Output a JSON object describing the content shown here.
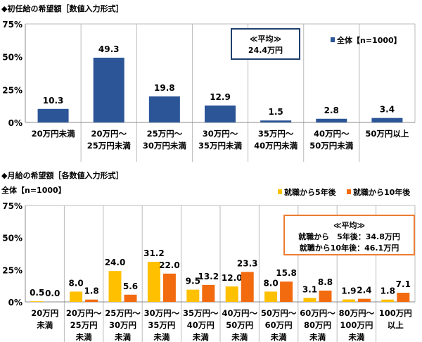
{
  "chart_data": [
    {
      "type": "bar",
      "title": "◆初任給の希望額［数値入力形式］",
      "categories": [
        "20万円未満",
        "20万円～\n25万円未満",
        "25万円～\n30万円未満",
        "30万円～\n35万円未満",
        "35万円～\n40万円未満",
        "40万円～\n50万円未満",
        "50万円以上"
      ],
      "series": [
        {
          "name": "全体【n=1000】",
          "values": [
            10.3,
            49.3,
            19.8,
            12.9,
            1.5,
            2.8,
            3.4
          ],
          "color": "#2B5597"
        }
      ],
      "yticks": [
        "0%",
        "25%",
        "50%",
        "75%"
      ],
      "ylim": [
        0,
        75
      ],
      "legend": "top-right",
      "annotation": {
        "title": "≪平均≫",
        "lines": [
          "24.4万円"
        ],
        "border_color": "#1F3F6E"
      }
    },
    {
      "type": "bar",
      "title": "◆月給の希望額［各数値入力形式］",
      "subtitle": "全体【n=1000】",
      "categories": [
        "20万円\n未満",
        "20万円～\n25万円\n未満",
        "25万円～\n30万円\n未満",
        "30万円～\n35万円\n未満",
        "35万円～\n40万円\n未満",
        "40万円～\n50万円\n未満",
        "50万円～\n60万円\n未満",
        "60万円～\n80万円\n未満",
        "80万円～\n100万円\n未満",
        "100万円\n以上"
      ],
      "series": [
        {
          "name": "就職から5年後",
          "values": [
            0.5,
            8.0,
            24.0,
            31.2,
            9.5,
            12.0,
            8.0,
            3.1,
            1.9,
            1.8
          ],
          "color": "#FFC000"
        },
        {
          "name": "就職から10年後",
          "values": [
            0.0,
            1.8,
            5.6,
            22.0,
            13.2,
            23.3,
            15.8,
            8.8,
            2.4,
            7.1
          ],
          "color": "#F26B0F"
        }
      ],
      "yticks": [
        "0%",
        "25%",
        "50%",
        "75%"
      ],
      "ylim": [
        0,
        75
      ],
      "legend": "top-right",
      "annotation": {
        "title": "≪平均≫",
        "lines": [
          "就職から　5年後：34.8万円",
          "就職から10年後：46.1万円"
        ],
        "border_color": "#ED7D31"
      }
    }
  ]
}
